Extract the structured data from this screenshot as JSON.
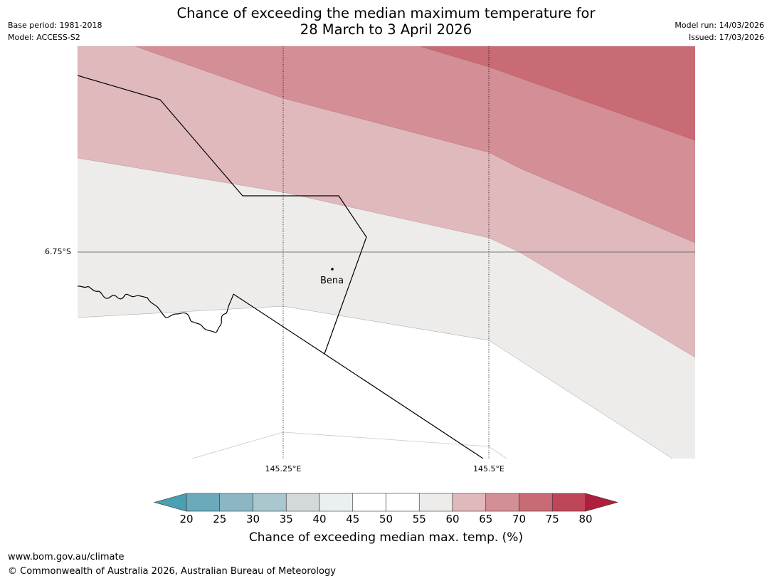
{
  "header": {
    "base_period": "Base period: 1981-2018",
    "model": "Model: ACCESS-S2",
    "model_run": "Model run: 14/03/2026",
    "issued": "Issued: 17/03/2026",
    "title_line1": "Chance of exceeding the median maximum temperature for",
    "title_line2": "28 March to 3 April 2026"
  },
  "map": {
    "latitude_labels": [
      "6.75°S"
    ],
    "longitude_labels": [
      "145.25°E",
      "145.5°E"
    ],
    "place": {
      "name": "Bena"
    },
    "bands": [
      {
        "range": "50-60",
        "color": "#edeceb"
      },
      {
        "range": "60-65",
        "color": "#e0b9bd"
      },
      {
        "range": "65-70",
        "color": "#d48e95"
      },
      {
        "range": "70-75",
        "color": "#c96b75"
      }
    ]
  },
  "colorbar": {
    "ticks": [
      "20",
      "25",
      "30",
      "35",
      "40",
      "45",
      "50",
      "55",
      "60",
      "65",
      "70",
      "75",
      "80"
    ],
    "colors": [
      "#6aaabb",
      "#8db6c4",
      "#a8c7ce",
      "#d3d9da",
      "#eaf0f1",
      "#ffffff",
      "#ffffff",
      "#edeceb",
      "#e0b9bd",
      "#d48e95",
      "#c96b75",
      "#bf4558"
    ],
    "under_color": "#4a9fb2",
    "over_color": "#ad1f3b",
    "label": "Chance of exceeding median max. temp. (%)"
  },
  "footer": {
    "url": "www.bom.gov.au/climate",
    "copyright": "© Commonwealth of Australia 2026, Australian Bureau of Meteorology"
  }
}
